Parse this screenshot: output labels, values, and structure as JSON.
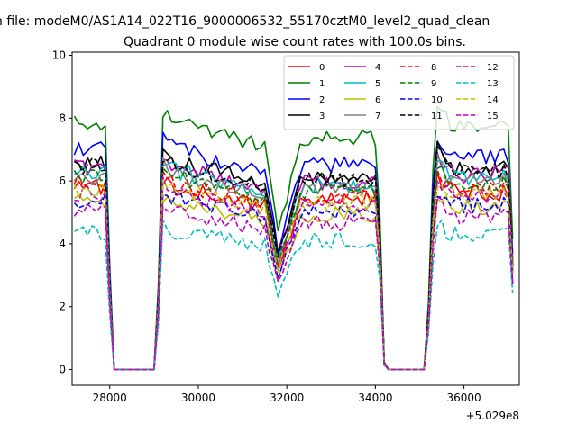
{
  "suptitle": "n file: modeM0/AS1A14_022T16_9000006532_55170cztM0_level2_quad_clean",
  "chart_data": {
    "type": "line",
    "title": "Quadrant 0 module wise count rates with 100.0s bins.",
    "xlabel": "",
    "ylabel": "",
    "x_offset_label": "+5.029e8",
    "xlim": [
      27150,
      37250
    ],
    "ylim": [
      -0.5,
      10.1
    ],
    "xticks": [
      28000,
      30000,
      32000,
      34000,
      36000
    ],
    "xtick_labels": [
      "28000",
      "30000",
      "32000",
      "34000",
      "36000"
    ],
    "yticks": [
      0,
      2,
      4,
      6,
      8,
      10
    ],
    "ytick_labels": [
      "0",
      "2",
      "4",
      "6",
      "8",
      "10"
    ],
    "grid": false,
    "legend_position": "top-right",
    "legend_columns": 4,
    "x_start": 27200,
    "x_step": 100,
    "gaps": [
      [
        28150,
        29050
      ],
      [
        34250,
        35150
      ]
    ],
    "series": [
      {
        "name": "0",
        "color": "#ff0000",
        "dash": "solid",
        "base": 5.8
      },
      {
        "name": "1",
        "color": "#008000",
        "dash": "solid",
        "base": 7.9
      },
      {
        "name": "2",
        "color": "#0000ff",
        "dash": "solid",
        "base": 7.0
      },
      {
        "name": "3",
        "color": "#000000",
        "dash": "solid",
        "base": 6.6
      },
      {
        "name": "4",
        "color": "#bf00bf",
        "dash": "solid",
        "base": 6.4
      },
      {
        "name": "5",
        "color": "#00bfbf",
        "dash": "solid",
        "base": 6.3
      },
      {
        "name": "6",
        "color": "#bfbf00",
        "dash": "solid",
        "base": 5.3
      },
      {
        "name": "7",
        "color": "#808080",
        "dash": "solid",
        "base": 6.2
      },
      {
        "name": "8",
        "color": "#ff0000",
        "dash": "dashed",
        "base": 5.9
      },
      {
        "name": "9",
        "color": "#008000",
        "dash": "dashed",
        "base": 6.1
      },
      {
        "name": "10",
        "color": "#0000ff",
        "dash": "dashed",
        "base": 5.4
      },
      {
        "name": "11",
        "color": "#000000",
        "dash": "dashed",
        "base": 6.5
      },
      {
        "name": "12",
        "color": "#bf00bf",
        "dash": "dashed",
        "base": 5.6
      },
      {
        "name": "13",
        "color": "#00bfbf",
        "dash": "dashed",
        "base": 4.4
      },
      {
        "name": "14",
        "color": "#bfbf00",
        "dash": "dashed",
        "base": 5.7
      },
      {
        "name": "15",
        "color": "#bf00bf",
        "dash": "dashed",
        "base": 5.0
      }
    ]
  }
}
